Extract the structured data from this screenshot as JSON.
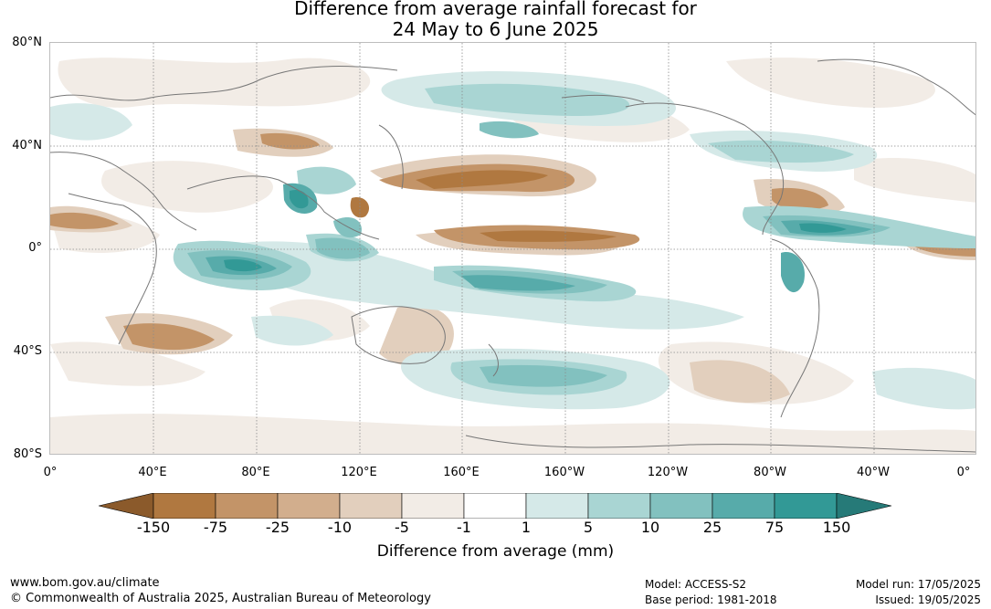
{
  "title": {
    "line1": "Difference from average rainfall forecast for",
    "line2": "24 May to 6 June 2025"
  },
  "map": {
    "lat_labels": [
      "80°N",
      "40°N",
      "0°",
      "40°S",
      "80°S"
    ],
    "lon_labels": [
      "0°",
      "40°E",
      "80°E",
      "120°E",
      "160°E",
      "160°W",
      "120°W",
      "80°W",
      "40°W",
      "0°"
    ],
    "gridlines": true
  },
  "legend": {
    "ticks": [
      "-150",
      "-75",
      "-25",
      "-10",
      "-5",
      "-1",
      "1",
      "5",
      "10",
      "25",
      "75",
      "150"
    ],
    "colors": [
      "#8b5a2b",
      "#b07840",
      "#c39468",
      "#d2ae8d",
      "#e2cfbd",
      "#f2ece6",
      "#ffffff",
      "#d5e9e8",
      "#a9d5d3",
      "#82c1bf",
      "#57abaa",
      "#329996",
      "#267a78"
    ],
    "label": "Difference from average (mm)"
  },
  "footer": {
    "website": "www.bom.gov.au/climate",
    "copyright": "© Commonwealth of Australia 2025, Australian Bureau of Meteorology",
    "model": "Model: ACCESS-S2",
    "base_period": "Base period: 1981-2018",
    "model_run": "Model run: 17/05/2025",
    "issued": "Issued: 19/05/2025"
  }
}
